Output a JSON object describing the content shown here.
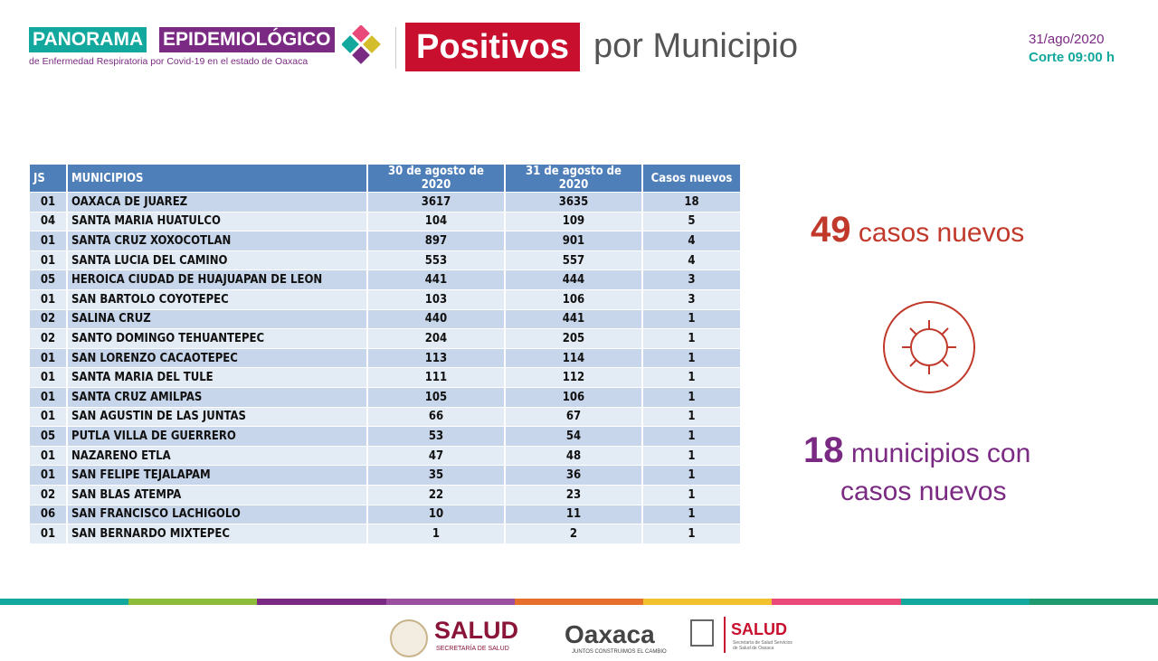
{
  "header": {
    "brand_1": "PANORAMA",
    "brand_2": "EPIDEMIOLÓGICO",
    "brand_sub": "de Enfermedad Respiratoria por Covid-19 en el estado de Oaxaca",
    "title_box": "Positivos",
    "title_rest": "por Municipio",
    "date": "31/ago/2020",
    "cut": "Corte 09:00 h"
  },
  "table": {
    "columns": [
      "JS",
      "MUNICIPIOS",
      "30 de agosto de 2020",
      "31 de agosto de 2020",
      "Casos nuevos"
    ],
    "rows": [
      [
        "01",
        "OAXACA DE JUAREZ",
        3617,
        3635,
        18
      ],
      [
        "04",
        "SANTA MARIA HUATULCO",
        104,
        109,
        5
      ],
      [
        "01",
        "SANTA CRUZ XOXOCOTLAN",
        897,
        901,
        4
      ],
      [
        "01",
        "SANTA LUCIA DEL CAMINO",
        553,
        557,
        4
      ],
      [
        "05",
        "HEROICA CIUDAD DE HUAJUAPAN DE LEON",
        441,
        444,
        3
      ],
      [
        "01",
        "SAN BARTOLO COYOTEPEC",
        103,
        106,
        3
      ],
      [
        "02",
        "SALINA CRUZ",
        440,
        441,
        1
      ],
      [
        "02",
        "SANTO DOMINGO TEHUANTEPEC",
        204,
        205,
        1
      ],
      [
        "01",
        "SAN LORENZO CACAOTEPEC",
        113,
        114,
        1
      ],
      [
        "01",
        "SANTA MARIA DEL TULE",
        111,
        112,
        1
      ],
      [
        "01",
        "SANTA CRUZ AMILPAS",
        105,
        106,
        1
      ],
      [
        "01",
        "SAN AGUSTIN DE LAS JUNTAS",
        66,
        67,
        1
      ],
      [
        "05",
        "PUTLA VILLA DE GUERRERO",
        53,
        54,
        1
      ],
      [
        "01",
        "NAZARENO ETLA",
        47,
        48,
        1
      ],
      [
        "01",
        "SAN FELIPE TEJALAPAM",
        35,
        36,
        1
      ],
      [
        "02",
        "SAN BLAS ATEMPA",
        22,
        23,
        1
      ],
      [
        "06",
        "SAN FRANCISCO LACHIGOLO",
        10,
        11,
        1
      ],
      [
        "01",
        "SAN BERNARDO MIXTEPEC",
        1,
        2,
        1
      ]
    ]
  },
  "stats": {
    "new_cases": 49,
    "new_cases_label": "casos nuevos",
    "municipios": 18,
    "municipios_label_1": "municipios con",
    "municipios_label_2": "casos nuevos"
  },
  "footer": {
    "salud": "SALUD",
    "salud_sub": "SECRETARÍA DE SALUD",
    "oaxaca": "Oaxaca",
    "oaxaca_sub": "JUNTOS CONSTRUIMOS EL CAMBIO",
    "salud2": "SALUD",
    "salud2_sub": "Secretaría de Salud Servicios de Salud de Oaxaca"
  }
}
